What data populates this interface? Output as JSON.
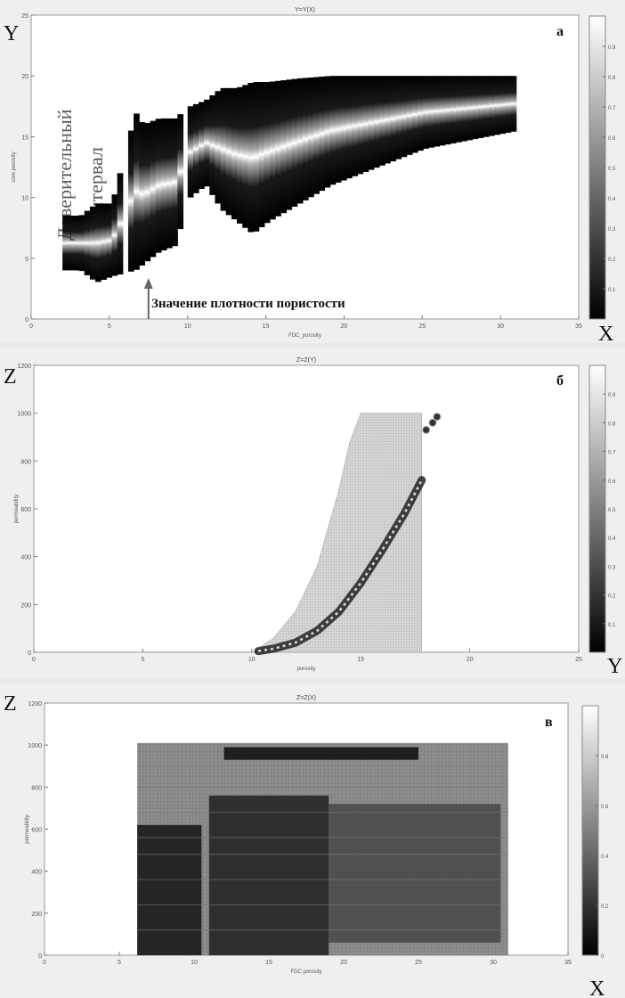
{
  "chart_data": [
    {
      "id": "a",
      "type": "heatmap",
      "title": "Y=Y(X)",
      "panel_letter": "а",
      "axis_letter_x": "X",
      "axis_letter_y": "Y",
      "xlabel": "FDC_porosity",
      "ylabel": "core porosity",
      "xlim": [
        0,
        35
      ],
      "ylim": [
        0,
        25
      ],
      "xticks": [
        "0",
        "5",
        "10",
        "15",
        "20",
        "25",
        "30",
        "35"
      ],
      "yticks": [
        "0",
        "5",
        "10",
        "15",
        "20",
        "25"
      ],
      "colorbar_ticks": [
        "0.1",
        "0.2",
        "0.3",
        "0.4",
        "0.5",
        "0.6",
        "0.7",
        "0.8",
        "0.9"
      ],
      "annotation_vertical_1": "Доверительный",
      "annotation_vertical_2": "интервал",
      "annotation_arrow": "Значение плотности пористости",
      "band": [
        {
          "x": 2,
          "ylo": 4.0,
          "yhi": 8.5,
          "c": 6.2
        },
        {
          "x": 3,
          "ylo": 4.0,
          "yhi": 8.5,
          "c": 6.2
        },
        {
          "x": 4,
          "ylo": 3.0,
          "yhi": 9.5,
          "c": 6.5
        },
        {
          "x": 5,
          "ylo": 3.5,
          "yhi": 9.5,
          "c": 6.8
        },
        {
          "x": 6.5,
          "ylo": 4.0,
          "yhi": 17.0,
          "c": 10.0
        },
        {
          "x": 7,
          "ylo": 4.5,
          "yhi": 16.0,
          "c": 10.5
        },
        {
          "x": 8,
          "ylo": 5.5,
          "yhi": 16.5,
          "c": 11.0
        },
        {
          "x": 9,
          "ylo": 6.0,
          "yhi": 16.5,
          "c": 11.5
        },
        {
          "x": 10,
          "ylo": 10.0,
          "yhi": 17.5,
          "c": 13.5
        },
        {
          "x": 11,
          "ylo": 11.0,
          "yhi": 18.0,
          "c": 14.0
        },
        {
          "x": 12,
          "ylo": 9.0,
          "yhi": 19.0,
          "c": 14.5
        },
        {
          "x": 13,
          "ylo": 8.0,
          "yhi": 19.0,
          "c": 14.5
        },
        {
          "x": 14,
          "ylo": 7.0,
          "yhi": 19.5,
          "c": 14.8
        },
        {
          "x": 15,
          "ylo": 8.0,
          "yhi": 19.5,
          "c": 15.0
        },
        {
          "x": 17,
          "ylo": 9.5,
          "yhi": 19.8,
          "c": 15.5
        },
        {
          "x": 19,
          "ylo": 11.0,
          "yhi": 20.0,
          "c": 16.0
        },
        {
          "x": 21,
          "ylo": 12.0,
          "yhi": 20.0,
          "c": 16.5
        },
        {
          "x": 23,
          "ylo": 13.0,
          "yhi": 20.0,
          "c": 17.0
        },
        {
          "x": 25,
          "ylo": 14.0,
          "yhi": 20.0,
          "c": 17.5
        },
        {
          "x": 27,
          "ylo": 14.5,
          "yhi": 20.0,
          "c": 18.0
        },
        {
          "x": 29,
          "ylo": 15.0,
          "yhi": 20.0,
          "c": 18.0
        },
        {
          "x": 31,
          "ylo": 15.5,
          "yhi": 20.0,
          "c": 18.0
        }
      ]
    },
    {
      "id": "b",
      "type": "heatmap",
      "title": "Z=Z(Y)",
      "panel_letter": "б",
      "axis_letter_x": "Y",
      "axis_letter_y": "Z",
      "xlabel": "porosity",
      "ylabel": "permeability",
      "xlim": [
        0,
        25
      ],
      "ylim": [
        0,
        1200
      ],
      "xticks": [
        "0",
        "5",
        "10",
        "15",
        "20",
        "25"
      ],
      "yticks": [
        "0",
        "200",
        "400",
        "600",
        "800",
        "1000",
        "1200"
      ],
      "colorbar_ticks": [
        "0.1",
        "0.2",
        "0.3",
        "0.4",
        "0.5",
        "0.6",
        "0.7",
        "0.8",
        "0.9"
      ],
      "envelope": [
        {
          "x": 10.2,
          "zhi": 10
        },
        {
          "x": 11,
          "zhi": 60
        },
        {
          "x": 12,
          "zhi": 170
        },
        {
          "x": 13,
          "zhi": 360
        },
        {
          "x": 14,
          "zhi": 680
        },
        {
          "x": 14.5,
          "zhi": 880
        },
        {
          "x": 15,
          "zhi": 1000
        },
        {
          "x": 17.5,
          "zhi": 1000
        }
      ],
      "envelope_right": 17.8,
      "curve": [
        {
          "x": 10.3,
          "z": 5
        },
        {
          "x": 11,
          "z": 15
        },
        {
          "x": 12,
          "z": 40
        },
        {
          "x": 13,
          "z": 90
        },
        {
          "x": 14,
          "z": 170
        },
        {
          "x": 15,
          "z": 290
        },
        {
          "x": 16,
          "z": 430
        },
        {
          "x": 17,
          "z": 580
        },
        {
          "x": 17.8,
          "z": 720
        }
      ],
      "cluster": [
        {
          "x": 18.0,
          "z": 930
        },
        {
          "x": 18.3,
          "z": 960
        },
        {
          "x": 18.5,
          "z": 985
        }
      ]
    },
    {
      "id": "v",
      "type": "heatmap",
      "title": "Z=Z(X)",
      "panel_letter": "в",
      "axis_letter_x": "X",
      "axis_letter_y": "Z",
      "xlabel": "FDC porosity",
      "ylabel": "permeability",
      "xlim": [
        0,
        35
      ],
      "ylim": [
        0,
        1200
      ],
      "xticks": [
        "0",
        "5",
        "10",
        "15",
        "20",
        "25",
        "30",
        "35"
      ],
      "yticks": [
        "0",
        "200",
        "400",
        "600",
        "800",
        "1000",
        "1200"
      ],
      "colorbar_ticks": [
        "0",
        "0.2",
        "0.4",
        "0.6",
        "0.8"
      ],
      "region_x": [
        6.2,
        31
      ],
      "region_z": [
        0,
        1010
      ],
      "dark_shapes": [
        {
          "x0": 6.2,
          "x1": 10.5,
          "z0": 0,
          "z1": 620,
          "v": 0.08
        },
        {
          "x0": 11,
          "x1": 19,
          "z0": 0,
          "z1": 760,
          "v": 0.12
        },
        {
          "x0": 19,
          "x1": 30.5,
          "z0": 60,
          "z1": 720,
          "v": 0.28
        },
        {
          "x0": 12,
          "x1": 25,
          "z0": 930,
          "z1": 990,
          "v": 0.05
        }
      ]
    }
  ]
}
